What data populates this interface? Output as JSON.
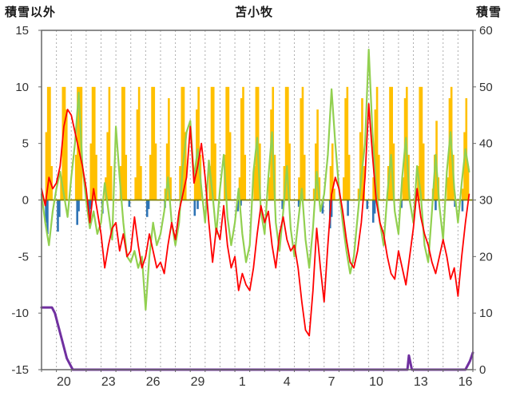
{
  "header": {
    "left_label": "積雪以外",
    "title": "苫小牧",
    "right_label": "積雪"
  },
  "chart_data": {
    "type": "mixed-bar-line",
    "title": "苫小牧",
    "left_axis": {
      "label": "積雪以外",
      "min": -15,
      "max": 15,
      "ticks": [
        15,
        10,
        5,
        0,
        -5,
        -10,
        -15
      ]
    },
    "right_axis": {
      "label": "積雪",
      "min": 0,
      "max": 60,
      "ticks": [
        60,
        50,
        40,
        30,
        20,
        10,
        0
      ]
    },
    "x_axis": {
      "domain_days": [
        0,
        29
      ],
      "gridline_step_days": 1,
      "tick_positions": [
        1.5,
        4.5,
        7.5,
        10.5,
        13.5,
        16.5,
        19.5,
        22.5,
        25.5,
        28.5
      ],
      "tick_labels": [
        "20",
        "23",
        "26",
        "29",
        "1",
        "4",
        "7",
        "10",
        "13",
        "16"
      ]
    },
    "colors": {
      "red": "#FF0000",
      "green": "#92D050",
      "orange": "#FFC000",
      "blue": "#2E74B5",
      "purple": "#7030A0",
      "zero_line": "#808000",
      "grid": "#ADADAD",
      "border": "#666666",
      "text": "#333333"
    },
    "series": {
      "red_line": {
        "axis": "left",
        "step_days": 0.25,
        "values": [
          1.0,
          -0.5,
          2.0,
          1.0,
          1.5,
          3.0,
          6.5,
          8.0,
          7.5,
          6.0,
          4.5,
          3.0,
          1.0,
          -2.0,
          1.0,
          -1.0,
          -3.0,
          -6.0,
          -4.0,
          -2.5,
          -2.0,
          -4.5,
          -3.0,
          -5.0,
          -4.5,
          -1.5,
          -4.0,
          -6.0,
          -5.0,
          -3.0,
          -4.5,
          -6.0,
          -5.5,
          -6.5,
          -4.0,
          -2.0,
          -3.5,
          -1.0,
          0.5,
          2.0,
          6.5,
          1.5,
          3.0,
          5.0,
          2.0,
          -2.0,
          -5.5,
          -2.5,
          -3.5,
          -0.5,
          -4.0,
          -6.0,
          -5.0,
          -8.0,
          -6.5,
          -7.5,
          -8.0,
          -6.0,
          -3.0,
          -0.5,
          -2.0,
          -1.0,
          -4.0,
          -6.0,
          -3.0,
          -1.5,
          -3.5,
          -4.5,
          -4.0,
          -6.0,
          -9.0,
          -11.5,
          -12.0,
          -8.0,
          -2.5,
          -6.0,
          -9.0,
          -4.0,
          0.5,
          2.0,
          1.0,
          -1.0,
          -3.5,
          -5.5,
          -6.0,
          -4.5,
          -2.0,
          2.0,
          8.5,
          4.0,
          0.0,
          -2.0,
          -3.0,
          -5.0,
          -6.5,
          -7.0,
          -4.5,
          -6.0,
          -7.5,
          -5.0,
          -2.5,
          1.0,
          -1.5,
          -3.0,
          -4.0,
          -5.5,
          -6.5,
          -5.0,
          -3.5,
          -5.0,
          -7.0,
          -6.0,
          -8.5,
          -5.0,
          -2.0,
          0.5
        ]
      },
      "green_line": {
        "axis": "left",
        "step_days": 0.25,
        "values": [
          0.5,
          -2.0,
          -4.0,
          -1.0,
          1.0,
          2.5,
          0.5,
          -1.5,
          2.0,
          5.0,
          9.5,
          3.0,
          0.0,
          -2.5,
          -1.0,
          -3.0,
          -2.0,
          1.5,
          -1.0,
          -3.5,
          6.5,
          2.0,
          -2.0,
          -5.0,
          -5.5,
          -4.5,
          -6.0,
          -5.0,
          -9.7,
          -5.0,
          -2.0,
          -4.0,
          -3.0,
          -1.0,
          2.0,
          -2.0,
          -4.0,
          -2.0,
          3.0,
          6.0,
          7.0,
          2.0,
          4.5,
          1.0,
          -2.0,
          3.5,
          0.5,
          -3.0,
          1.0,
          4.0,
          -1.5,
          -4.0,
          -2.0,
          1.0,
          -3.0,
          -5.5,
          -4.0,
          2.5,
          5.5,
          -1.0,
          -3.0,
          2.0,
          6.0,
          -2.0,
          -4.5,
          -1.0,
          3.0,
          -2.5,
          -5.0,
          -2.0,
          1.0,
          -3.5,
          -6.0,
          -2.5,
          2.5,
          -1.0,
          0.5,
          4.0,
          9.8,
          5.0,
          1.0,
          -2.0,
          -4.5,
          -6.5,
          -5.0,
          -1.5,
          2.0,
          5.0,
          13.3,
          6.0,
          1.0,
          -2.0,
          -4.0,
          0.5,
          4.0,
          -1.0,
          -3.0,
          2.0,
          5.5,
          0.0,
          -2.0,
          3.0,
          0.5,
          -4.0,
          -5.5,
          -1.0,
          4.0,
          -0.5,
          -3.5,
          2.5,
          6.0,
          1.0,
          -2.0,
          1.5,
          4.5,
          2.5
        ]
      },
      "orange_bars": {
        "axis": "left",
        "day_offsets": [
          0.32,
          0.44,
          0.56,
          0.68
        ],
        "daily_heights": [
          [
            6,
            10,
            10,
            3
          ],
          [
            2,
            10,
            10,
            8
          ],
          [
            4,
            10,
            10,
            10
          ],
          [
            5,
            10,
            10,
            4
          ],
          [
            2,
            6,
            10,
            3
          ],
          [
            3,
            10,
            10,
            4
          ],
          [
            2,
            8,
            10,
            3
          ],
          [
            4,
            10,
            10,
            5
          ],
          [
            1,
            5,
            9,
            2
          ],
          [
            3,
            10,
            10,
            6
          ],
          [
            2,
            8,
            10,
            4
          ],
          [
            3,
            10,
            10,
            5
          ],
          [
            4,
            10,
            10,
            6
          ],
          [
            2,
            9,
            10,
            4
          ],
          [
            3,
            10,
            10,
            5
          ],
          [
            2,
            8,
            10,
            4
          ],
          [
            3,
            10,
            10,
            5
          ],
          [
            2,
            9,
            10,
            4
          ],
          [
            1,
            5,
            8,
            2
          ],
          [
            0,
            3,
            5,
            1
          ],
          [
            2,
            9,
            10,
            4
          ],
          [
            1,
            6,
            9,
            3
          ],
          [
            2,
            8,
            10,
            4
          ],
          [
            3,
            10,
            10,
            5
          ],
          [
            2,
            9,
            10,
            4
          ],
          [
            3,
            10,
            10,
            5
          ],
          [
            1,
            4,
            7,
            2
          ],
          [
            2,
            9,
            10,
            4
          ],
          [
            1,
            6,
            9,
            3
          ]
        ]
      },
      "blue_bars": {
        "axis": "left",
        "bars": [
          [
            0.3,
            2.0
          ],
          [
            0.4,
            3.0
          ],
          [
            1.1,
            2.8
          ],
          [
            1.2,
            1.5
          ],
          [
            2.4,
            2.2
          ],
          [
            2.5,
            1.0
          ],
          [
            3.2,
            1.8
          ],
          [
            3.3,
            0.8
          ],
          [
            4.1,
            1.2
          ],
          [
            5.9,
            0.6
          ],
          [
            7.1,
            1.5
          ],
          [
            7.2,
            0.8
          ],
          [
            8.3,
            0.7
          ],
          [
            10.3,
            1.4
          ],
          [
            10.5,
            0.8
          ],
          [
            11.1,
            0.6
          ],
          [
            13.2,
            1.0
          ],
          [
            13.4,
            0.5
          ],
          [
            16.2,
            0.8
          ],
          [
            17.3,
            0.6
          ],
          [
            18.9,
            1.2
          ],
          [
            19.4,
            2.5
          ],
          [
            19.5,
            1.5
          ],
          [
            20.6,
            1.4
          ],
          [
            21.9,
            0.8
          ],
          [
            22.3,
            2.0
          ],
          [
            22.4,
            1.2
          ],
          [
            24.2,
            0.7
          ],
          [
            26.5,
            0.9
          ],
          [
            27.8,
            0.6
          ],
          [
            28.3,
            1.0
          ]
        ]
      },
      "purple_snow_depth_line": {
        "axis": "right",
        "points": [
          [
            0,
            11
          ],
          [
            0.7,
            11
          ],
          [
            0.9,
            10
          ],
          [
            1.1,
            8
          ],
          [
            1.3,
            6
          ],
          [
            1.5,
            4
          ],
          [
            1.7,
            2
          ],
          [
            1.9,
            1
          ],
          [
            2.1,
            0
          ],
          [
            24.6,
            0
          ],
          [
            24.7,
            2.5
          ],
          [
            24.9,
            0
          ],
          [
            28.5,
            0
          ],
          [
            28.8,
            1.5
          ],
          [
            29,
            3
          ]
        ]
      }
    }
  }
}
